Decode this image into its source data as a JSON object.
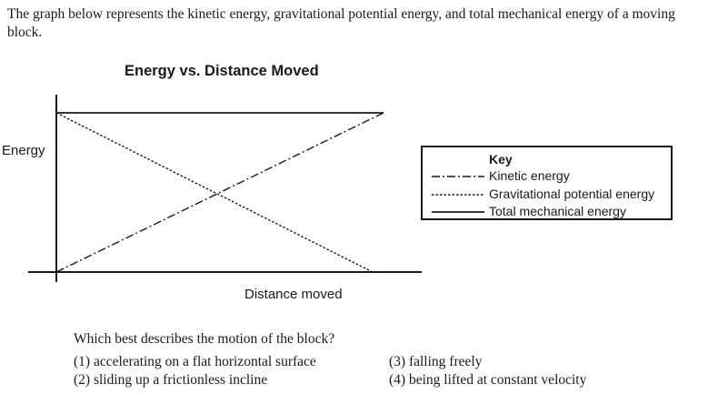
{
  "intro_text": "The graph below represents the kinetic energy, gravitational potential energy, and total mechanical energy of a moving block.",
  "chart_data": {
    "type": "line",
    "title": "Energy vs. Distance Moved",
    "xlabel": "Distance moved",
    "ylabel": "Energy",
    "grid": false,
    "legend_placement": "right",
    "legend_title": "Key",
    "series": [
      {
        "name": "Kinetic energy",
        "style": "dash-dot",
        "x": [
          0,
          1
        ],
        "y": [
          0,
          1
        ]
      },
      {
        "name": "Gravitational potential energy",
        "style": "dotted",
        "x": [
          0,
          1
        ],
        "y": [
          1,
          0
        ]
      },
      {
        "name": "Total mechanical energy",
        "style": "solid",
        "x": [
          0,
          1
        ],
        "y": [
          1,
          1
        ]
      }
    ]
  },
  "question": {
    "prompt": "Which best describes the motion of the block?",
    "choices": [
      "(1)  accelerating on a flat horizontal surface",
      "(2)  sliding up a frictionless incline",
      "(3)  falling freely",
      "(4)  being lifted at constant velocity"
    ]
  }
}
